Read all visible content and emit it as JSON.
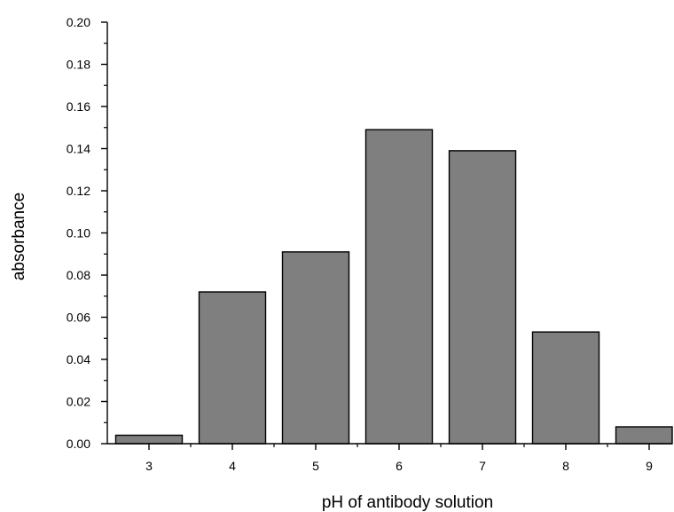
{
  "chart_data": {
    "type": "bar",
    "title": "",
    "xlabel": "pH of antibody solution",
    "ylabel": "absorbance",
    "categories": [
      "3",
      "4",
      "5",
      "6",
      "7",
      "8",
      "9"
    ],
    "values": [
      0.004,
      0.072,
      0.091,
      0.149,
      0.139,
      0.053,
      0.008
    ],
    "ylim": [
      0,
      0.2
    ],
    "yticks": [
      "0.00",
      "0.02",
      "0.04",
      "0.06",
      "0.08",
      "0.10",
      "0.12",
      "0.14",
      "0.16",
      "0.18",
      "0.20"
    ],
    "grid": false,
    "legend": "none",
    "colors": {
      "bar_fill": "#7f7f7f",
      "bar_stroke": "#000000",
      "axis": "#000000"
    }
  }
}
